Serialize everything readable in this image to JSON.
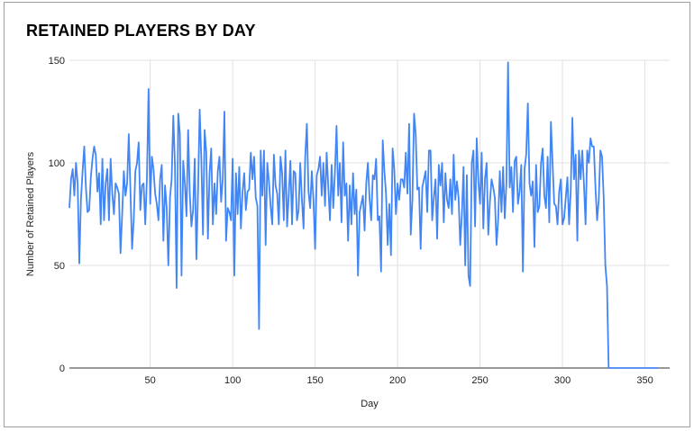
{
  "chart_data": {
    "type": "line",
    "title": "RETAINED PLAYERS BY DAY",
    "xlabel": "Day",
    "ylabel": "Number of Retained Players",
    "xlim": [
      1,
      365
    ],
    "ylim": [
      0,
      150
    ],
    "x_ticks": [
      50,
      100,
      150,
      200,
      250,
      300,
      350
    ],
    "y_ticks": [
      0,
      50,
      100,
      150
    ],
    "grid": true,
    "legend": "none",
    "line_color": "#4285f4",
    "series": [
      {
        "name": "",
        "values": [
          78,
          92,
          97,
          84,
          100,
          90,
          51,
          82,
          96,
          108,
          88,
          76,
          77,
          93,
          102,
          108,
          104,
          86,
          95,
          70,
          102,
          72,
          90,
          97,
          72,
          102,
          85,
          75,
          90,
          88,
          85,
          56,
          75,
          96,
          84,
          90,
          114,
          87,
          58,
          72,
          96,
          100,
          110,
          77,
          89,
          90,
          70,
          92,
          136,
          80,
          103,
          97,
          85,
          80,
          72,
          92,
          99,
          62,
          89,
          78,
          50,
          83,
          92,
          123,
          99,
          39,
          124,
          114,
          45,
          101,
          90,
          74,
          116,
          85,
          69,
          77,
          102,
          53,
          86,
          126,
          102,
          65,
          116,
          105,
          63,
          95,
          107,
          70,
          90,
          75,
          96,
          103,
          81,
          92,
          125,
          62,
          78,
          76,
          72,
          102,
          45,
          95,
          75,
          98,
          68,
          86,
          95,
          77,
          86,
          87,
          105,
          92,
          103,
          83,
          79,
          19,
          106,
          84,
          106,
          60,
          100,
          91,
          79,
          70,
          104,
          89,
          85,
          70,
          103,
          95,
          72,
          106,
          69,
          84,
          101,
          70,
          96,
          95,
          72,
          77,
          100,
          82,
          68,
          103,
          119,
          86,
          78,
          96,
          82,
          58,
          94,
          97,
          103,
          84,
          100,
          79,
          105,
          88,
          72,
          99,
          78,
          95,
          118,
          84,
          100,
          71,
          110,
          84,
          90,
          62,
          89,
          70,
          95,
          75,
          87,
          45,
          76,
          80,
          84,
          67,
          90,
          100,
          83,
          72,
          94,
          92,
          102,
          72,
          74,
          47,
          111,
          96,
          85,
          60,
          80,
          55,
          107,
          97,
          75,
          90,
          82,
          92,
          92,
          88,
          105,
          85,
          119,
          65,
          82,
          124,
          114,
          87,
          88,
          58,
          88,
          92,
          96,
          76,
          106,
          106,
          72,
          83,
          92,
          63,
          99,
          89,
          100,
          71,
          95,
          82,
          78,
          92,
          75,
          104,
          82,
          91,
          83,
          60,
          75,
          98,
          50,
          94,
          45,
          40,
          100,
          106,
          69,
          112,
          91,
          80,
          105,
          68,
          92,
          100,
          65,
          81,
          92,
          88,
          83,
          60,
          72,
          96,
          76,
          98,
          73,
          90,
          149,
          88,
          98,
          76,
          101,
          103,
          80,
          86,
          99,
          47,
          97,
          104,
          129,
          90,
          84,
          91,
          59,
          99,
          76,
          79,
          100,
          107,
          84,
          78,
          103,
          71,
          120,
          100,
          80,
          79,
          70,
          86,
          92,
          70,
          73,
          83,
          93,
          70,
          86,
          122,
          92,
          104,
          62,
          106,
          92,
          106,
          90,
          70,
          106,
          100,
          112,
          108,
          108,
          88,
          72,
          82,
          106,
          103,
          83,
          50,
          40,
          0,
          0,
          0,
          0,
          0,
          0,
          0,
          0,
          0,
          0,
          0,
          0,
          0,
          0,
          0,
          0,
          0,
          0,
          0,
          0,
          0,
          0,
          0,
          0,
          0,
          0,
          0,
          0,
          0,
          0,
          0
        ]
      }
    ]
  }
}
